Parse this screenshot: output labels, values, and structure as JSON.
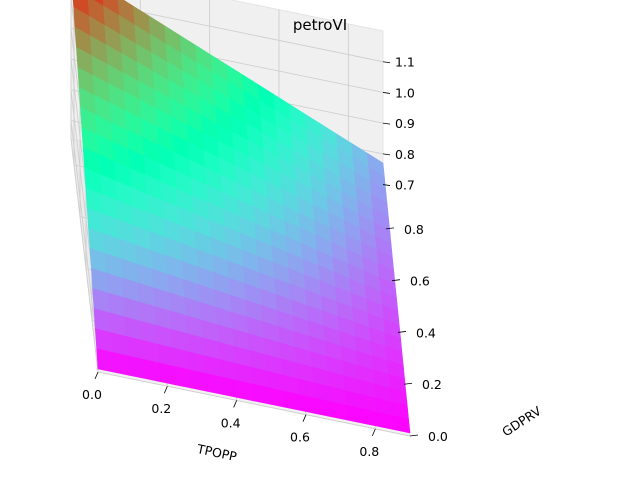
{
  "chart_data": {
    "type": "surface3d",
    "title": "petroVI",
    "xlabel": "TPOPP",
    "ylabel": "GDPRV",
    "zlabel": "",
    "colormap": "rainbow",
    "grid": true,
    "xlim": [
      0,
      0.9
    ],
    "ylim": [
      0,
      0.9
    ],
    "zlim": [
      0.64,
      1.2
    ],
    "x_ticks": [
      "0.0",
      "0.2",
      "0.4",
      "0.6",
      "0.8"
    ],
    "y_ticks": [
      "0.0",
      "0.2",
      "0.4",
      "0.6",
      "0.8"
    ],
    "z_ticks": [
      "0.7",
      "0.8",
      "0.9",
      "1.0",
      "1.1"
    ],
    "x_tick_values": [
      0,
      0.2,
      0.4,
      0.6,
      0.8
    ],
    "y_tick_values": [
      0,
      0.2,
      0.4,
      0.6,
      0.8
    ],
    "z_tick_values": [
      0.7,
      0.8,
      0.9,
      1.0,
      1.1
    ],
    "grid_n": 20,
    "surface_corners": {
      "x0_y0": 0.65,
      "x1_y0": 0.65,
      "x0_y1": 1.2,
      "x1_y1": 0.77
    },
    "surface_range": {
      "x": [
        0.0,
        0.9
      ],
      "y": [
        0.0,
        0.9
      ]
    }
  }
}
